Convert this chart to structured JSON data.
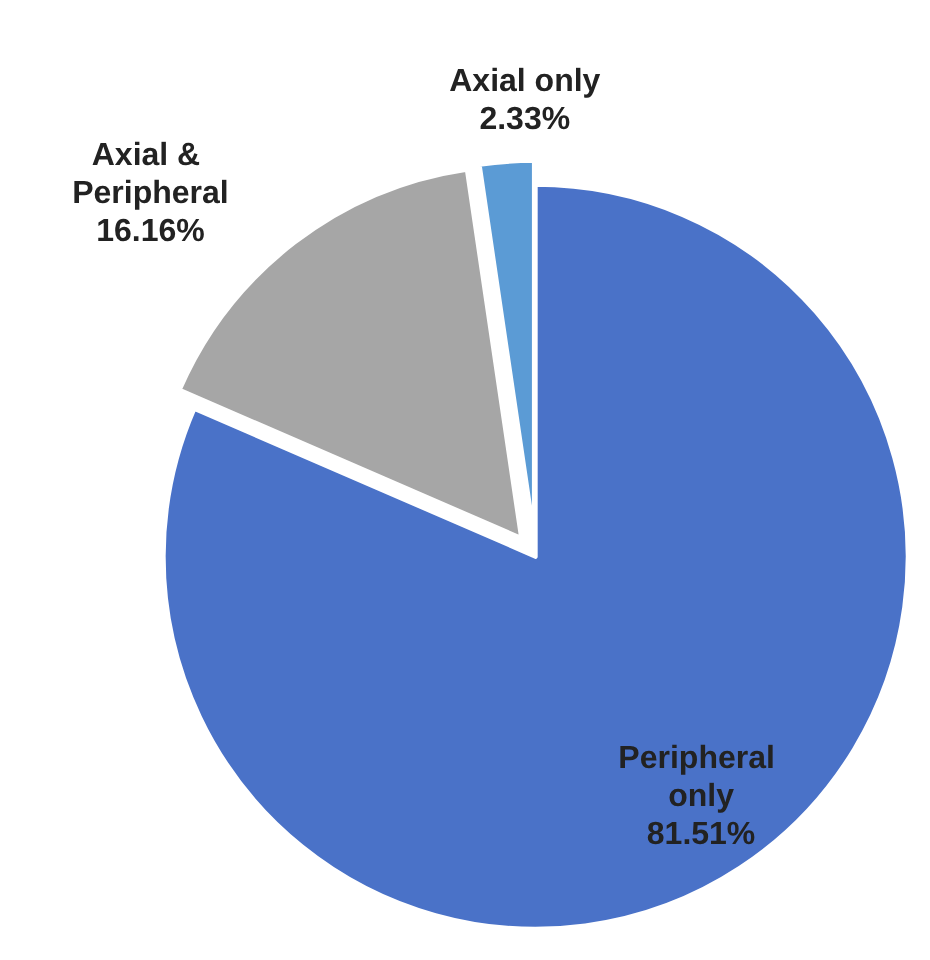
{
  "chart_data": {
    "type": "pie",
    "categories": [
      "Peripheral only",
      "Axial & Peripheral",
      "Axial only"
    ],
    "values": [
      81.51,
      16.16,
      2.33
    ],
    "value_labels": [
      "81.51%",
      "16.16%",
      "2.33%"
    ],
    "colors": [
      "#4a72c8",
      "#a6a6a6",
      "#5b9bd5"
    ],
    "legend": false
  }
}
